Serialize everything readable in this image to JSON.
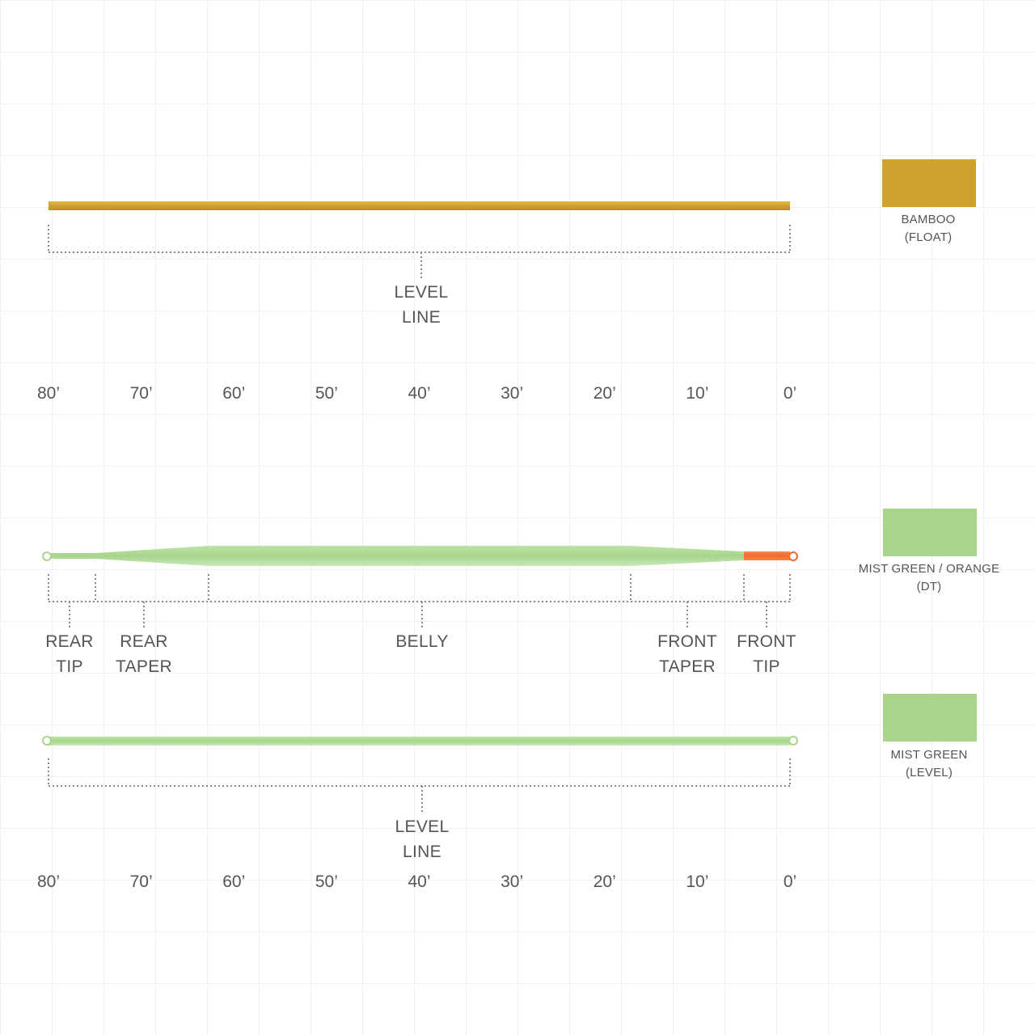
{
  "colors": {
    "bamboo": "#CFA22F",
    "bamboo_edge": "#B98E22",
    "mist_green": "#A8D48C",
    "mist_green_light": "#C8E8B4",
    "orange": "#EE6A2C",
    "text": "#555555",
    "bracket": "#888888"
  },
  "diagram_1": {
    "line_color_name": "bamboo",
    "section_label": "LEVEL\nLINE",
    "swatch": {
      "label_line1": "BAMBOO",
      "label_line2": "(FLOAT)",
      "color": "#CFA22F"
    },
    "axis_ticks": [
      "80’",
      "70’",
      "60’",
      "50’",
      "40’",
      "30’",
      "20’",
      "10’",
      "0’"
    ]
  },
  "diagram_2": {
    "line_color_name": "mist-green-orange",
    "sections": [
      {
        "label": "REAR\nTIP"
      },
      {
        "label": "REAR\nTAPER"
      },
      {
        "label": "BELLY"
      },
      {
        "label": "FRONT\nTAPER"
      },
      {
        "label": "FRONT\nTIP"
      }
    ],
    "swatch": {
      "label_line1": "MIST GREEN / ORANGE",
      "label_line2": "(DT)",
      "color": "#A8D48C"
    }
  },
  "diagram_3": {
    "line_color_name": "mist-green",
    "section_label": "LEVEL\nLINE",
    "swatch": {
      "label_line1": "MIST GREEN",
      "label_line2": "(LEVEL)",
      "color": "#A8D48C"
    },
    "axis_ticks": [
      "80’",
      "70’",
      "60’",
      "50’",
      "40’",
      "30’",
      "20’",
      "10’",
      "0’"
    ]
  }
}
